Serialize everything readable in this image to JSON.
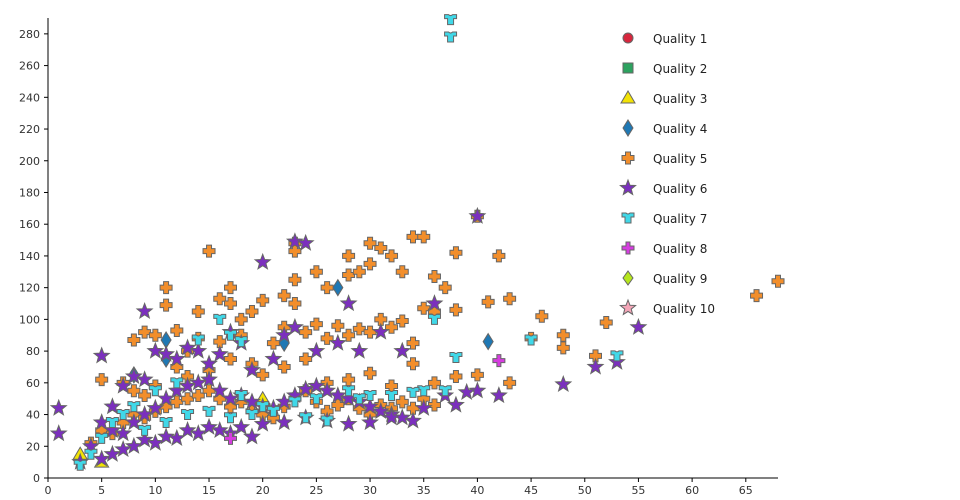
{
  "chart_data": {
    "type": "scatter",
    "title": "",
    "xlabel": "",
    "ylabel": "",
    "xlim": [
      0,
      68
    ],
    "ylim": [
      0,
      290
    ],
    "x_ticks": [
      0,
      5,
      10,
      15,
      20,
      25,
      30,
      35,
      40,
      45,
      50,
      55,
      60,
      65
    ],
    "y_ticks": [
      0,
      20,
      40,
      60,
      80,
      100,
      120,
      140,
      160,
      180,
      200,
      220,
      240,
      260,
      280
    ],
    "grid": false,
    "legend_position": "top-right",
    "series": [
      {
        "name": "Quality 1",
        "symbol": "circle",
        "color": "#d7263d",
        "points": []
      },
      {
        "name": "Quality 2",
        "symbol": "square",
        "color": "#2ca25f",
        "points": []
      },
      {
        "name": "Quality 3",
        "symbol": "triangle",
        "color": "#f2e205",
        "points": [
          [
            3,
            15
          ],
          [
            5,
            10
          ],
          [
            20,
            50
          ]
        ]
      },
      {
        "name": "Quality 4",
        "symbol": "diamond",
        "color": "#1f78b4",
        "points": [
          [
            8,
            65
          ],
          [
            11,
            87
          ],
          [
            11,
            75
          ],
          [
            22,
            85
          ],
          [
            27,
            120
          ],
          [
            41,
            86
          ]
        ]
      },
      {
        "name": "Quality 5",
        "symbol": "cross",
        "color": "#f28e2b",
        "points": [
          [
            15,
            143
          ],
          [
            23,
            148
          ],
          [
            23,
            143
          ],
          [
            11,
            120
          ],
          [
            11,
            109
          ],
          [
            14,
            105
          ],
          [
            16,
            113
          ],
          [
            17,
            110
          ],
          [
            17,
            120
          ],
          [
            18,
            100
          ],
          [
            19,
            105
          ],
          [
            20,
            112
          ],
          [
            22,
            115
          ],
          [
            23,
            110
          ],
          [
            23,
            125
          ],
          [
            25,
            130
          ],
          [
            26,
            120
          ],
          [
            28,
            140
          ],
          [
            28,
            128
          ],
          [
            29,
            130
          ],
          [
            30,
            148
          ],
          [
            30,
            135
          ],
          [
            31,
            145
          ],
          [
            32,
            140
          ],
          [
            33,
            130
          ],
          [
            34,
            152
          ],
          [
            35,
            152
          ],
          [
            36,
            127
          ],
          [
            37,
            120
          ],
          [
            38,
            142
          ],
          [
            40,
            165
          ],
          [
            41,
            111
          ],
          [
            42,
            140
          ],
          [
            43,
            113
          ],
          [
            45,
            88
          ],
          [
            46,
            102
          ],
          [
            48,
            90
          ],
          [
            48,
            82
          ],
          [
            51,
            77
          ],
          [
            52,
            98
          ],
          [
            66,
            115
          ],
          [
            68,
            124
          ],
          [
            8,
            87
          ],
          [
            9,
            92
          ],
          [
            10,
            90
          ],
          [
            12,
            93
          ],
          [
            13,
            80
          ],
          [
            14,
            88
          ],
          [
            16,
            86
          ],
          [
            18,
            90
          ],
          [
            21,
            85
          ],
          [
            22,
            95
          ],
          [
            24,
            92
          ],
          [
            25,
            97
          ],
          [
            26,
            88
          ],
          [
            27,
            96
          ],
          [
            28,
            90
          ],
          [
            29,
            94
          ],
          [
            30,
            92
          ],
          [
            31,
            100
          ],
          [
            32,
            95
          ],
          [
            33,
            99
          ],
          [
            34,
            85
          ],
          [
            35,
            107
          ],
          [
            36,
            105
          ],
          [
            38,
            106
          ],
          [
            40,
            65
          ],
          [
            43,
            60
          ],
          [
            5,
            62
          ],
          [
            7,
            60
          ],
          [
            8,
            55
          ],
          [
            9,
            52
          ],
          [
            10,
            58
          ],
          [
            12,
            70
          ],
          [
            13,
            64
          ],
          [
            15,
            68
          ],
          [
            17,
            75
          ],
          [
            19,
            72
          ],
          [
            20,
            65
          ],
          [
            22,
            70
          ],
          [
            24,
            75
          ],
          [
            26,
            60
          ],
          [
            28,
            62
          ],
          [
            30,
            66
          ],
          [
            32,
            58
          ],
          [
            34,
            72
          ],
          [
            36,
            60
          ],
          [
            38,
            64
          ],
          [
            4,
            22
          ],
          [
            5,
            30
          ],
          [
            6,
            28
          ],
          [
            7,
            35
          ],
          [
            8,
            40
          ],
          [
            9,
            38
          ],
          [
            10,
            42
          ],
          [
            11,
            45
          ],
          [
            12,
            48
          ],
          [
            13,
            50
          ],
          [
            14,
            52
          ],
          [
            15,
            55
          ],
          [
            16,
            50
          ],
          [
            17,
            45
          ],
          [
            18,
            48
          ],
          [
            19,
            42
          ],
          [
            20,
            40
          ],
          [
            21,
            38
          ],
          [
            22,
            45
          ],
          [
            23,
            50
          ],
          [
            24,
            55
          ],
          [
            25,
            48
          ],
          [
            26,
            42
          ],
          [
            27,
            46
          ],
          [
            28,
            50
          ],
          [
            29,
            44
          ],
          [
            30,
            40
          ],
          [
            31,
            46
          ],
          [
            32,
            44
          ],
          [
            33,
            48
          ],
          [
            34,
            44
          ],
          [
            35,
            50
          ],
          [
            36,
            46
          ]
        ]
      },
      {
        "name": "Quality 6",
        "symbol": "star",
        "color": "#7b2fbe",
        "points": [
          [
            1,
            44
          ],
          [
            1,
            28
          ],
          [
            5,
            77
          ],
          [
            9,
            105
          ],
          [
            20,
            136
          ],
          [
            23,
            149
          ],
          [
            24,
            148
          ],
          [
            40,
            165
          ],
          [
            36,
            110
          ],
          [
            28,
            110
          ],
          [
            55,
            95
          ],
          [
            53,
            73
          ],
          [
            51,
            70
          ],
          [
            48,
            59
          ],
          [
            42,
            52
          ],
          [
            40,
            55
          ],
          [
            39,
            54
          ],
          [
            38,
            46
          ],
          [
            37,
            52
          ],
          [
            33,
            80
          ],
          [
            31,
            92
          ],
          [
            29,
            80
          ],
          [
            27,
            85
          ],
          [
            25,
            80
          ],
          [
            23,
            95
          ],
          [
            22,
            90
          ],
          [
            21,
            75
          ],
          [
            19,
            68
          ],
          [
            18,
            85
          ],
          [
            17,
            92
          ],
          [
            16,
            78
          ],
          [
            15,
            72
          ],
          [
            14,
            80
          ],
          [
            13,
            82
          ],
          [
            12,
            75
          ],
          [
            11,
            78
          ],
          [
            10,
            80
          ],
          [
            9,
            62
          ],
          [
            8,
            64
          ],
          [
            7,
            58
          ],
          [
            6,
            45
          ],
          [
            5,
            35
          ],
          [
            4,
            20
          ],
          [
            3,
            10
          ],
          [
            6,
            30
          ],
          [
            7,
            28
          ],
          [
            8,
            35
          ],
          [
            9,
            40
          ],
          [
            10,
            44
          ],
          [
            11,
            50
          ],
          [
            12,
            55
          ],
          [
            13,
            58
          ],
          [
            14,
            60
          ],
          [
            15,
            62
          ],
          [
            16,
            55
          ],
          [
            17,
            50
          ],
          [
            18,
            52
          ],
          [
            19,
            48
          ],
          [
            20,
            45
          ],
          [
            21,
            44
          ],
          [
            22,
            48
          ],
          [
            23,
            52
          ],
          [
            24,
            56
          ],
          [
            25,
            58
          ],
          [
            26,
            55
          ],
          [
            27,
            52
          ],
          [
            28,
            50
          ],
          [
            29,
            48
          ],
          [
            30,
            45
          ],
          [
            31,
            42
          ],
          [
            32,
            40
          ],
          [
            33,
            38
          ],
          [
            34,
            36
          ],
          [
            35,
            44
          ],
          [
            8,
            20
          ],
          [
            10,
            22
          ],
          [
            12,
            25
          ],
          [
            14,
            28
          ],
          [
            16,
            30
          ],
          [
            18,
            32
          ],
          [
            20,
            34
          ],
          [
            22,
            35
          ],
          [
            24,
            38
          ],
          [
            26,
            36
          ],
          [
            28,
            34
          ],
          [
            30,
            35
          ],
          [
            32,
            38
          ],
          [
            5,
            12
          ],
          [
            6,
            15
          ],
          [
            7,
            18
          ],
          [
            9,
            24
          ],
          [
            11,
            26
          ],
          [
            13,
            30
          ],
          [
            15,
            32
          ],
          [
            17,
            28
          ],
          [
            19,
            26
          ]
        ]
      },
      {
        "name": "Quality 7",
        "symbol": "tshirt",
        "color": "#40d8e8",
        "points": [
          [
            37.5,
            289
          ],
          [
            37.5,
            278
          ],
          [
            38,
            76
          ],
          [
            45,
            87
          ],
          [
            53,
            77
          ],
          [
            36,
            100
          ],
          [
            35,
            55
          ],
          [
            30,
            52
          ],
          [
            28,
            55
          ],
          [
            25,
            50
          ],
          [
            23,
            48
          ],
          [
            20,
            45
          ],
          [
            18,
            52
          ],
          [
            16,
            100
          ],
          [
            17,
            90
          ],
          [
            18,
            86
          ],
          [
            14,
            87
          ],
          [
            12,
            60
          ],
          [
            10,
            55
          ],
          [
            8,
            45
          ],
          [
            7,
            40
          ],
          [
            6,
            35
          ],
          [
            5,
            25
          ],
          [
            4,
            15
          ],
          [
            3,
            8
          ],
          [
            9,
            30
          ],
          [
            11,
            35
          ],
          [
            13,
            40
          ],
          [
            15,
            42
          ],
          [
            17,
            38
          ],
          [
            19,
            40
          ],
          [
            21,
            42
          ],
          [
            24,
            38
          ],
          [
            26,
            36
          ],
          [
            29,
            50
          ],
          [
            32,
            52
          ],
          [
            34,
            54
          ],
          [
            37,
            55
          ]
        ]
      },
      {
        "name": "Quality 8",
        "symbol": "plus",
        "color": "#d63ce0",
        "points": [
          [
            42,
            74
          ],
          [
            17,
            25
          ]
        ]
      },
      {
        "name": "Quality 9",
        "symbol": "diamond-small",
        "color": "#b5e61d",
        "points": []
      },
      {
        "name": "Quality 10",
        "symbol": "star-outline",
        "color": "#f4a6b8",
        "points": []
      }
    ]
  },
  "legend": {
    "items": [
      "Quality 1",
      "Quality 2",
      "Quality 3",
      "Quality 4",
      "Quality 5",
      "Quality 6",
      "Quality 7",
      "Quality 8",
      "Quality 9",
      "Quality 10"
    ]
  }
}
